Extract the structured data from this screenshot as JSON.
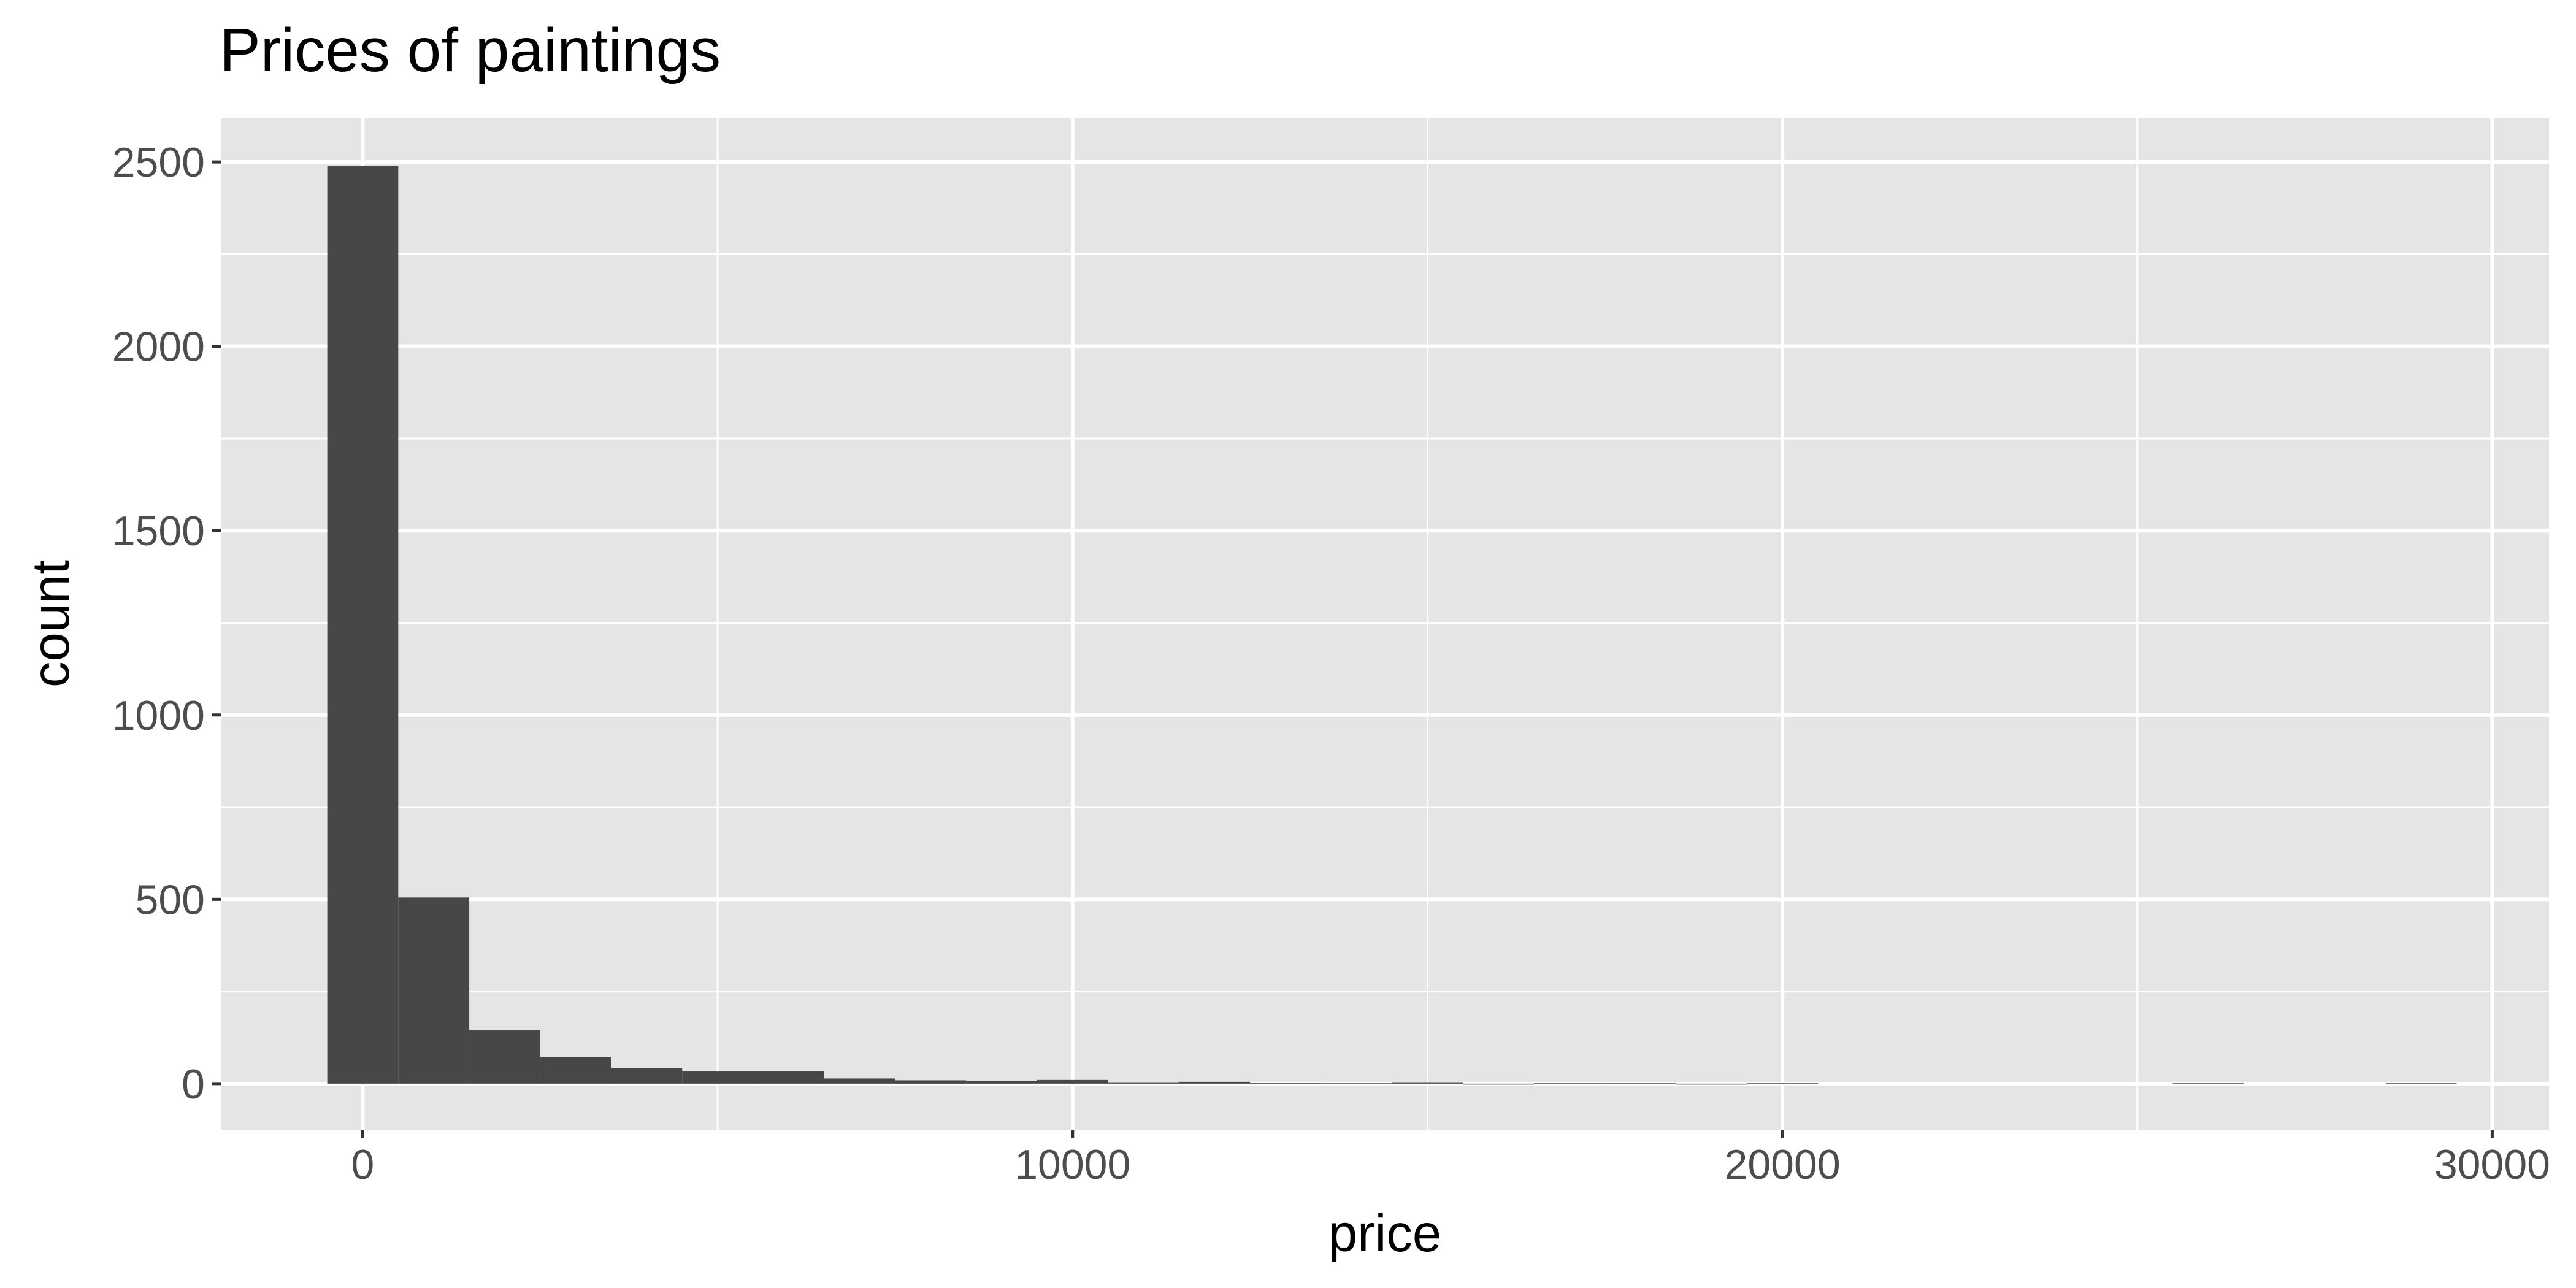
{
  "chart_data": {
    "type": "bar",
    "title": "Prices of paintings",
    "xlabel": "price",
    "ylabel": "count",
    "xlim": [
      -2000,
      30800
    ],
    "ylim": [
      -125,
      2620
    ],
    "x_ticks": [
      0,
      10000,
      20000,
      30000
    ],
    "y_ticks": [
      0,
      500,
      1000,
      1500,
      2000,
      2500
    ],
    "x_minor_ticks": [
      5000,
      15000,
      25000
    ],
    "y_minor_ticks": [
      250,
      750,
      1250,
      1750,
      2250
    ],
    "grid": true,
    "bin_width": 1000,
    "bins": [
      {
        "x0": -500,
        "x1": 500,
        "count": 2490
      },
      {
        "x0": 500,
        "x1": 1500,
        "count": 505
      },
      {
        "x0": 1500,
        "x1": 2500,
        "count": 145
      },
      {
        "x0": 2500,
        "x1": 3500,
        "count": 72
      },
      {
        "x0": 3500,
        "x1": 4500,
        "count": 42
      },
      {
        "x0": 4500,
        "x1": 5500,
        "count": 33
      },
      {
        "x0": 5500,
        "x1": 6500,
        "count": 33
      },
      {
        "x0": 6500,
        "x1": 7500,
        "count": 14
      },
      {
        "x0": 7500,
        "x1": 8500,
        "count": 9
      },
      {
        "x0": 8500,
        "x1": 9500,
        "count": 8
      },
      {
        "x0": 9500,
        "x1": 10500,
        "count": 10
      },
      {
        "x0": 10500,
        "x1": 11500,
        "count": 4
      },
      {
        "x0": 11500,
        "x1": 12500,
        "count": 5
      },
      {
        "x0": 12500,
        "x1": 13500,
        "count": 3
      },
      {
        "x0": 13500,
        "x1": 14500,
        "count": 1
      },
      {
        "x0": 14500,
        "x1": 15500,
        "count": 4
      },
      {
        "x0": 15500,
        "x1": 16500,
        "count": 0
      },
      {
        "x0": 16500,
        "x1": 17500,
        "count": 1
      },
      {
        "x0": 17500,
        "x1": 18500,
        "count": 1
      },
      {
        "x0": 18500,
        "x1": 19500,
        "count": 0
      },
      {
        "x0": 19500,
        "x1": 20500,
        "count": 1
      },
      {
        "x0": 25500,
        "x1": 26500,
        "count": 1
      },
      {
        "x0": 28500,
        "x1": 29500,
        "count": 1
      }
    ],
    "colors": {
      "bar": "#474747",
      "panel": "#e5e5e5",
      "grid": "#ffffff",
      "tick_text": "#4d4d4d",
      "tick_mark": "#333333"
    }
  }
}
